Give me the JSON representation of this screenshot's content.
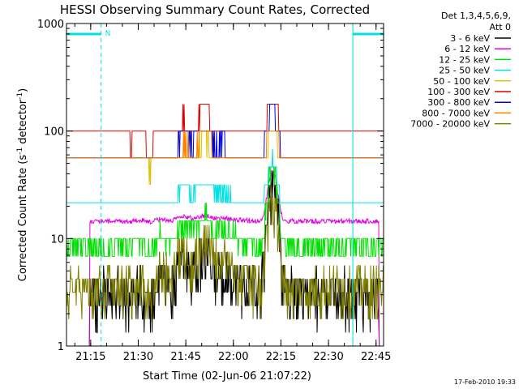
{
  "chart_data": {
    "type": "line",
    "title": "HESSI Observing Summary Count Rates, Corrected",
    "xlabel": "Start Time (02-Jun-06 21:07:22)",
    "ylabel_main": "Corrected Count Rate (s",
    "ylabel_sup1": "-1",
    "ylabel_mid": " detector",
    "ylabel_sup2": "-1",
    "ylabel_end": ")",
    "y_scale": "log",
    "ylim": [
      1,
      1000
    ],
    "xlim_minutes": [
      0,
      100
    ],
    "x_ticks": [
      {
        "minute": 7.63,
        "label": "21:15"
      },
      {
        "minute": 22.63,
        "label": "21:30"
      },
      {
        "minute": 37.63,
        "label": "21:45"
      },
      {
        "minute": 52.63,
        "label": "22:00"
      },
      {
        "minute": 67.63,
        "label": "22:15"
      },
      {
        "minute": 82.63,
        "label": "22:30"
      },
      {
        "minute": 97.63,
        "label": "22:45"
      }
    ],
    "y_ticks": [
      {
        "value": 1,
        "label": "1"
      },
      {
        "value": 10,
        "label": "10"
      },
      {
        "value": 100,
        "label": "100"
      },
      {
        "value": 1000,
        "label": "1000"
      }
    ],
    "legend_header": [
      "Det 1,3,4,5,6,9,",
      "Att 0"
    ],
    "legend_placement": "right",
    "night_marker_label": "N",
    "night_intervals_minutes": [
      [
        0,
        10.9
      ],
      [
        90.3,
        100
      ]
    ],
    "timestamp": "17-Feb-2010 19:33",
    "series": [
      {
        "name": "3 - 6 keV",
        "color": "#000000",
        "base": 3.2,
        "hump": 3.0,
        "flare": 32,
        "seg": 4,
        "jitter": 0.55,
        "drops": [
          [
            0,
            7.2
          ],
          [
            98.5,
            100
          ]
        ],
        "drop_value": 1.0
      },
      {
        "name": "6 - 12 keV",
        "color": "#e000e0",
        "base": 14.5,
        "hump": 1.5,
        "flare": 28,
        "seg": 1,
        "jitter": 0.05,
        "drops": [
          [
            0,
            7.2
          ],
          [
            98.5,
            100
          ]
        ],
        "drop_value": 1.0
      },
      {
        "name": "12 - 25 keV",
        "color": "#00e000",
        "base": 8.5,
        "hump": 5.5,
        "flare": 35,
        "seg": 3,
        "jitter": 0.22,
        "drops": [],
        "drop_value": 5.5
      },
      {
        "name": "25 - 50 keV",
        "color": "#00e0e0",
        "base": 21,
        "hump": 8,
        "flare": 32,
        "seg": 3,
        "jitter": 0.08,
        "drops": [],
        "drop_value": 19
      },
      {
        "name": "50 - 100 keV",
        "color": "#e0c000",
        "base": 48,
        "hump": 25,
        "flare": 55,
        "seg": 2,
        "jitter": 0.06,
        "drops": [],
        "drop_value": 46
      },
      {
        "name": "100 - 300 keV",
        "color": "#e00000",
        "base": 80,
        "hump": 55,
        "flare": 145,
        "seg": 2,
        "jitter": 0.04,
        "drops": [],
        "drop_value": 78
      },
      {
        "name": "300 - 800 keV",
        "color": "#0000e0",
        "base": 60,
        "hump": 22,
        "flare": 95,
        "seg": 2,
        "jitter": 0.05,
        "drops": [],
        "drop_value": 55
      },
      {
        "name": "800 - 7000 keV",
        "color": "#ff8000",
        "base": 54,
        "hump": 24,
        "flare": 72,
        "seg": 2,
        "jitter": 0.05,
        "drops": [],
        "drop_value": 50
      },
      {
        "name": "7000 - 20000 keV",
        "color": "#808000",
        "base": 3.5,
        "hump": 4.5,
        "flare": 20,
        "seg": 4,
        "jitter": 0.5,
        "drops": [],
        "drop_value": 3.5
      }
    ]
  }
}
